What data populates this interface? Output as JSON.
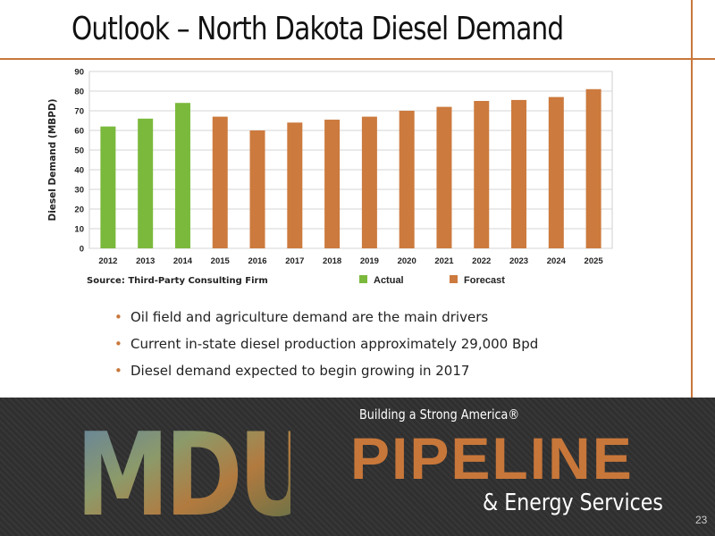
{
  "slide": {
    "title": "Outlook – North Dakota Diesel Demand",
    "bullets": [
      "Oil field and agriculture demand are the main drivers",
      "Current in-state diesel production approximately 29,000 Bpd",
      "Diesel demand expected to begin growing in 2017"
    ],
    "page_number": "23"
  },
  "footer": {
    "logo_text": "MDU",
    "tagline": "Building a Strong America®",
    "brand": "PIPELINE",
    "subbrand": "& Energy Services"
  },
  "colors": {
    "accent": "#c8773a",
    "actual": "#7bb93c",
    "forecast": "#cc7a3e",
    "footer_bg": "#2f2f2f"
  },
  "chart_data": {
    "type": "bar",
    "ylabel": "Diesel Demand (MBPD)",
    "source": "Source: Third-Party Consulting Firm",
    "categories": [
      "2012",
      "2013",
      "2014",
      "2015",
      "2016",
      "2017",
      "2018",
      "2019",
      "2020",
      "2021",
      "2022",
      "2023",
      "2024",
      "2025"
    ],
    "values": [
      62,
      66,
      74,
      67,
      60,
      64,
      65.5,
      67,
      70,
      72,
      75,
      75.5,
      77,
      81
    ],
    "series_type": [
      "actual",
      "actual",
      "actual",
      "forecast",
      "forecast",
      "forecast",
      "forecast",
      "forecast",
      "forecast",
      "forecast",
      "forecast",
      "forecast",
      "forecast",
      "forecast"
    ],
    "legend": [
      {
        "name": "Actual",
        "color": "#7bb93c"
      },
      {
        "name": "Forecast",
        "color": "#cc7a3e"
      }
    ],
    "ylim": [
      0,
      90
    ],
    "yticks": [
      0,
      10,
      20,
      30,
      40,
      50,
      60,
      70,
      80,
      90
    ],
    "grid": true,
    "legend_position": "bottom"
  }
}
